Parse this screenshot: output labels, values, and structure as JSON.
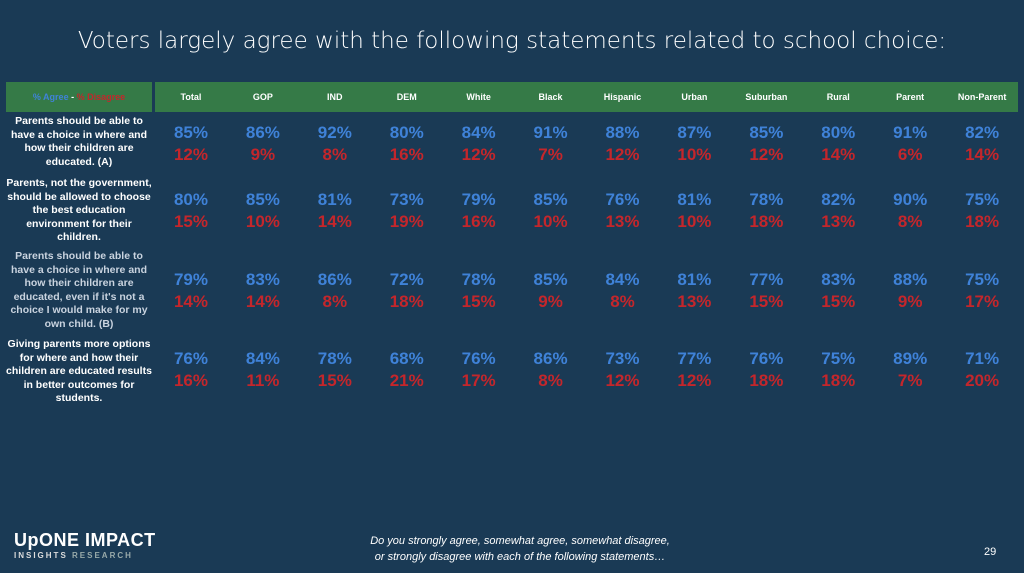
{
  "title": "Voters largely agree with the following statements related to school choice:",
  "legend": {
    "agree": "% Agree",
    "sep": " - ",
    "disagree": "% Disagree"
  },
  "columns": [
    "Total",
    "GOP",
    "IND",
    "DEM",
    "White",
    "Black",
    "Hispanic",
    "Urban",
    "Suburban",
    "Rural",
    "Parent",
    "Non-Parent"
  ],
  "rows": [
    {
      "label": "Parents should be able to have a choice in where and how their children are educated. (A)",
      "agree": [
        "85%",
        "86%",
        "92%",
        "80%",
        "84%",
        "91%",
        "88%",
        "87%",
        "85%",
        "80%",
        "91%",
        "82%"
      ],
      "disagree": [
        "12%",
        "9%",
        "8%",
        "16%",
        "12%",
        "7%",
        "12%",
        "10%",
        "12%",
        "14%",
        "6%",
        "14%"
      ]
    },
    {
      "label": "Parents, not the government, should be allowed to choose the best education environment for their children.",
      "agree": [
        "80%",
        "85%",
        "81%",
        "73%",
        "79%",
        "85%",
        "76%",
        "81%",
        "78%",
        "82%",
        "90%",
        "75%"
      ],
      "disagree": [
        "15%",
        "10%",
        "14%",
        "19%",
        "16%",
        "10%",
        "13%",
        "10%",
        "18%",
        "13%",
        "8%",
        "18%"
      ]
    },
    {
      "label": "Parents should be able to have a choice in where and how their children are educated, even if it's not a choice I would make for my own child. (B)",
      "agree": [
        "79%",
        "83%",
        "86%",
        "72%",
        "78%",
        "85%",
        "84%",
        "81%",
        "77%",
        "83%",
        "88%",
        "75%"
      ],
      "disagree": [
        "14%",
        "14%",
        "8%",
        "18%",
        "15%",
        "9%",
        "8%",
        "13%",
        "15%",
        "15%",
        "9%",
        "17%"
      ]
    },
    {
      "label": "Giving parents more options for where and how their children are educated results in better outcomes for students.",
      "agree": [
        "76%",
        "84%",
        "78%",
        "68%",
        "76%",
        "86%",
        "73%",
        "77%",
        "76%",
        "75%",
        "89%",
        "71%"
      ],
      "disagree": [
        "16%",
        "11%",
        "15%",
        "21%",
        "17%",
        "8%",
        "12%",
        "12%",
        "18%",
        "18%",
        "7%",
        "20%"
      ]
    }
  ],
  "footer": {
    "logo_main": "UpONE IMPACT",
    "logo_sub_left": "INSIGHTS",
    "logo_sub_right": "RESEARCH",
    "question_line1": "Do you strongly agree, somewhat agree, somewhat disagree,",
    "question_line2": "or strongly disagree with each of the following statements…",
    "page_number": "29"
  },
  "colors": {
    "background": "#1a3a55",
    "header": "#357a47",
    "agree": "#3f82d8",
    "disagree": "#c4262b"
  }
}
